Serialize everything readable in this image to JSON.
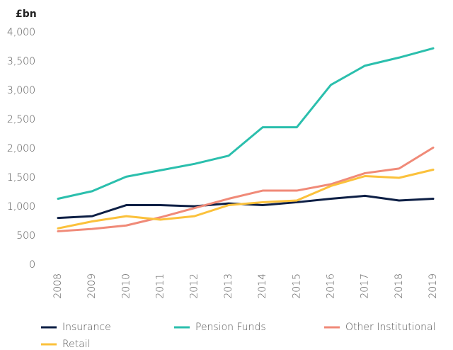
{
  "chart_data": {
    "type": "line",
    "y_axis_label": "£bn",
    "categories": [
      "2008",
      "2009",
      "2010",
      "2011",
      "2012",
      "2013",
      "2014",
      "2015",
      "2016",
      "2017",
      "2018",
      "2019"
    ],
    "series": [
      {
        "name": "Insurance",
        "color": "#0d1f45",
        "values": [
          810,
          840,
          1030,
          1030,
          1010,
          1060,
          1030,
          1080,
          1140,
          1190,
          1110,
          1140
        ]
      },
      {
        "name": "Pension Funds",
        "color": "#2bbfad",
        "values": [
          1140,
          1270,
          1520,
          1630,
          1740,
          1880,
          2370,
          2370,
          3100,
          3430,
          3570,
          3730
        ]
      },
      {
        "name": "Other Institutional",
        "color": "#f08a78",
        "values": [
          580,
          620,
          680,
          820,
          980,
          1140,
          1280,
          1280,
          1390,
          1580,
          1660,
          2020
        ]
      },
      {
        "name": "Retail",
        "color": "#fbc13b",
        "values": [
          630,
          750,
          840,
          780,
          840,
          1030,
          1080,
          1110,
          1360,
          1530,
          1500,
          1640
        ]
      }
    ],
    "ylim": [
      0,
      4000
    ],
    "yticks": [
      0,
      500,
      {
        "value": 1000,
        "label": "1,000"
      },
      {
        "value": 1500,
        "label": "1,500"
      },
      {
        "value": 2000,
        "label": "2,000"
      },
      {
        "value": 2500,
        "label": "2,500"
      },
      {
        "value": 3000,
        "label": "3,000"
      },
      {
        "value": 3500,
        "label": "3,500"
      },
      {
        "value": 4000,
        "label": "4,000"
      }
    ],
    "grid": false
  }
}
